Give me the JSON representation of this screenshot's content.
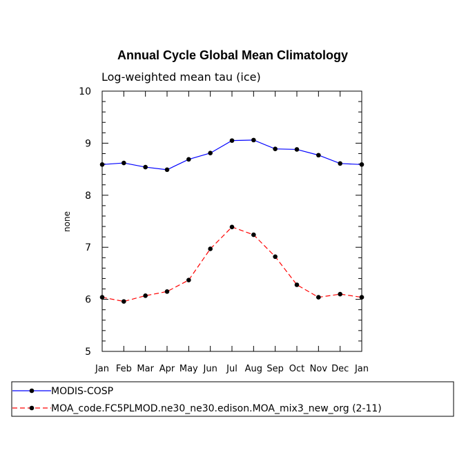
{
  "chart_data": {
    "type": "line",
    "title": "Annual Cycle Global Mean Climatology",
    "subtitle": "Log-weighted mean tau (ice)",
    "xlabel": "",
    "ylabel": "none",
    "categories": [
      "Jan",
      "Feb",
      "Mar",
      "Apr",
      "May",
      "Jun",
      "Jul",
      "Aug",
      "Sep",
      "Oct",
      "Nov",
      "Dec",
      "Jan"
    ],
    "ylim": [
      5,
      10
    ],
    "yticks": [
      "5",
      "6",
      "7",
      "8",
      "9",
      "10"
    ],
    "legend_position": "bottom",
    "series": [
      {
        "name": "MODIS-COSP",
        "color": "#0000ff",
        "dash": "solid",
        "values": [
          8.59,
          8.62,
          8.54,
          8.49,
          8.69,
          8.81,
          9.05,
          9.06,
          8.89,
          8.88,
          8.77,
          8.61,
          8.59
        ]
      },
      {
        "name": "MOA_code.FC5PLMOD.ne30_ne30.edison.MOA_mix3_new_org (2-11)",
        "color": "#ff0000",
        "dash": "dashed",
        "values": [
          6.04,
          5.96,
          6.07,
          6.15,
          6.37,
          6.97,
          7.39,
          7.24,
          6.82,
          6.28,
          6.04,
          6.1,
          6.04
        ]
      }
    ]
  }
}
